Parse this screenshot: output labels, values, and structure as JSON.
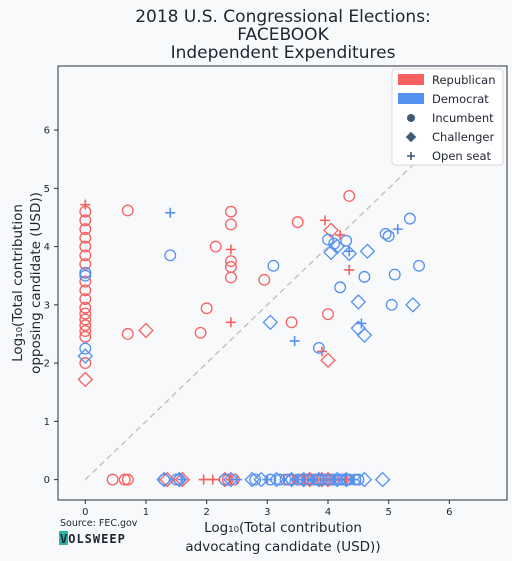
{
  "chart_data": {
    "type": "scatter",
    "title": [
      "2018 U.S. Congressional Elections:",
      "FACEBOOK",
      "Independent Expenditures"
    ],
    "xlabel": [
      "Log₁₀(Total contribution",
      "advocating candidate (USD))"
    ],
    "ylabel": [
      "Log₁₀(Total contribution",
      "opposing candidate (USD))"
    ],
    "xlim": [
      -0.45,
      6.95
    ],
    "ylim": [
      -0.35,
      7.1
    ],
    "xticks": [
      0,
      1,
      2,
      3,
      4,
      5,
      6
    ],
    "yticks": [
      0,
      1,
      2,
      3,
      4,
      5,
      6
    ],
    "grid": false,
    "diagonal": true,
    "legend": {
      "placement": "top-right",
      "parties": [
        {
          "label": "Republican",
          "color": "#f8605f"
        },
        {
          "label": "Democrat",
          "color": "#5591f0"
        }
      ],
      "statuses": [
        {
          "label": "Incumbent",
          "marker": "circle"
        },
        {
          "label": "Challenger",
          "marker": "diamond"
        },
        {
          "label": "Open seat",
          "marker": "plus"
        }
      ]
    },
    "series": [
      {
        "party": "R",
        "status": "circle",
        "points": [
          [
            0,
            4.6
          ],
          [
            0,
            4.45
          ],
          [
            0,
            4.3
          ],
          [
            0,
            4.15
          ],
          [
            0,
            4.0
          ],
          [
            0,
            3.85
          ],
          [
            0,
            3.7
          ],
          [
            0,
            3.55
          ],
          [
            0,
            3.4
          ],
          [
            0,
            3.25
          ],
          [
            0,
            3.1
          ],
          [
            0,
            2.95
          ],
          [
            0,
            2.85
          ],
          [
            0,
            2.75
          ],
          [
            0,
            2.65
          ],
          [
            0,
            2.55
          ],
          [
            0,
            2.45
          ],
          [
            0,
            2.0
          ],
          [
            0.7,
            4.62
          ],
          [
            0.7,
            2.5
          ],
          [
            2.4,
            4.6
          ],
          [
            2.4,
            4.38
          ],
          [
            2.4,
            3.75
          ],
          [
            2.4,
            3.65
          ],
          [
            2.4,
            3.47
          ],
          [
            2.15,
            4.0
          ],
          [
            2.0,
            2.94
          ],
          [
            1.9,
            2.52
          ],
          [
            2.95,
            3.43
          ],
          [
            3.5,
            4.42
          ],
          [
            3.4,
            2.7
          ],
          [
            4.35,
            4.87
          ],
          [
            4.0,
            2.84
          ],
          [
            0.45,
            0
          ],
          [
            0.65,
            0
          ],
          [
            0.7,
            0
          ],
          [
            1.55,
            0
          ],
          [
            2.35,
            0
          ],
          [
            2.45,
            0
          ],
          [
            3.35,
            0
          ],
          [
            3.55,
            0
          ],
          [
            3.65,
            0
          ],
          [
            3.75,
            0
          ],
          [
            3.85,
            0
          ],
          [
            3.95,
            0
          ],
          [
            4.05,
            0
          ],
          [
            4.25,
            0
          ]
        ]
      },
      {
        "party": "R",
        "status": "diamond",
        "points": [
          [
            0,
            1.72
          ],
          [
            1.0,
            2.56
          ],
          [
            4.05,
            4.28
          ],
          [
            4.0,
            2.05
          ],
          [
            1.35,
            0
          ],
          [
            1.6,
            0
          ],
          [
            2.3,
            0
          ],
          [
            3.7,
            0
          ],
          [
            3.9,
            0
          ],
          [
            4.0,
            0
          ]
        ]
      },
      {
        "party": "R",
        "status": "plus",
        "points": [
          [
            0,
            4.72
          ],
          [
            2.4,
            3.95
          ],
          [
            2.4,
            2.7
          ],
          [
            3.95,
            4.45
          ],
          [
            4.2,
            4.2
          ],
          [
            4.35,
            3.6
          ],
          [
            3.9,
            2.2
          ],
          [
            1.95,
            0
          ],
          [
            2.1,
            0
          ],
          [
            2.4,
            0
          ],
          [
            3.45,
            0
          ],
          [
            3.6,
            0
          ],
          [
            4.1,
            0
          ],
          [
            4.3,
            0
          ]
        ]
      },
      {
        "party": "D",
        "status": "circle",
        "points": [
          [
            0,
            3.5
          ],
          [
            0,
            3.55
          ],
          [
            0,
            2.25
          ],
          [
            1.4,
            3.85
          ],
          [
            3.1,
            3.67
          ],
          [
            3.85,
            2.26
          ],
          [
            4.0,
            4.12
          ],
          [
            4.1,
            4.05
          ],
          [
            4.3,
            4.1
          ],
          [
            4.2,
            3.3
          ],
          [
            4.6,
            3.48
          ],
          [
            4.95,
            4.22
          ],
          [
            5.0,
            4.18
          ],
          [
            5.35,
            4.48
          ],
          [
            5.1,
            3.52
          ],
          [
            5.5,
            3.67
          ],
          [
            5.05,
            3.0
          ],
          [
            1.3,
            0
          ],
          [
            1.5,
            0
          ],
          [
            2.3,
            0
          ],
          [
            2.8,
            0
          ],
          [
            3.05,
            0
          ],
          [
            3.2,
            0
          ],
          [
            3.3,
            0
          ],
          [
            3.4,
            0
          ],
          [
            3.5,
            0
          ],
          [
            3.6,
            0
          ],
          [
            3.7,
            0
          ],
          [
            3.8,
            0
          ],
          [
            3.9,
            0
          ],
          [
            4.0,
            0
          ],
          [
            4.1,
            0
          ],
          [
            4.2,
            0
          ],
          [
            4.3,
            0
          ],
          [
            4.35,
            0
          ],
          [
            4.45,
            0
          ],
          [
            4.5,
            0
          ]
        ]
      },
      {
        "party": "D",
        "status": "diamond",
        "points": [
          [
            0,
            2.12
          ],
          [
            3.05,
            2.7
          ],
          [
            4.05,
            3.9
          ],
          [
            4.15,
            4.0
          ],
          [
            4.35,
            3.88
          ],
          [
            4.65,
            3.92
          ],
          [
            4.5,
            3.05
          ],
          [
            4.5,
            2.6
          ],
          [
            4.6,
            2.48
          ],
          [
            5.4,
            3.0
          ],
          [
            1.3,
            0
          ],
          [
            1.55,
            0
          ],
          [
            2.4,
            0
          ],
          [
            2.75,
            0
          ],
          [
            2.9,
            0
          ],
          [
            3.15,
            0
          ],
          [
            3.4,
            0
          ],
          [
            3.6,
            0
          ],
          [
            3.85,
            0
          ],
          [
            4.15,
            0
          ],
          [
            4.3,
            0
          ],
          [
            4.6,
            0
          ],
          [
            4.9,
            0
          ]
        ]
      },
      {
        "party": "D",
        "status": "plus",
        "points": [
          [
            1.4,
            4.58
          ],
          [
            3.45,
            2.38
          ],
          [
            4.35,
            3.92
          ],
          [
            4.55,
            2.68
          ],
          [
            5.15,
            4.3
          ],
          [
            1.6,
            0
          ],
          [
            2.5,
            0
          ],
          [
            3.0,
            0
          ],
          [
            3.5,
            0
          ],
          [
            3.75,
            0
          ],
          [
            4.1,
            0
          ],
          [
            4.4,
            0
          ]
        ]
      }
    ]
  },
  "source": "Source: FEC.gov",
  "brand": "VOLSWEEP"
}
